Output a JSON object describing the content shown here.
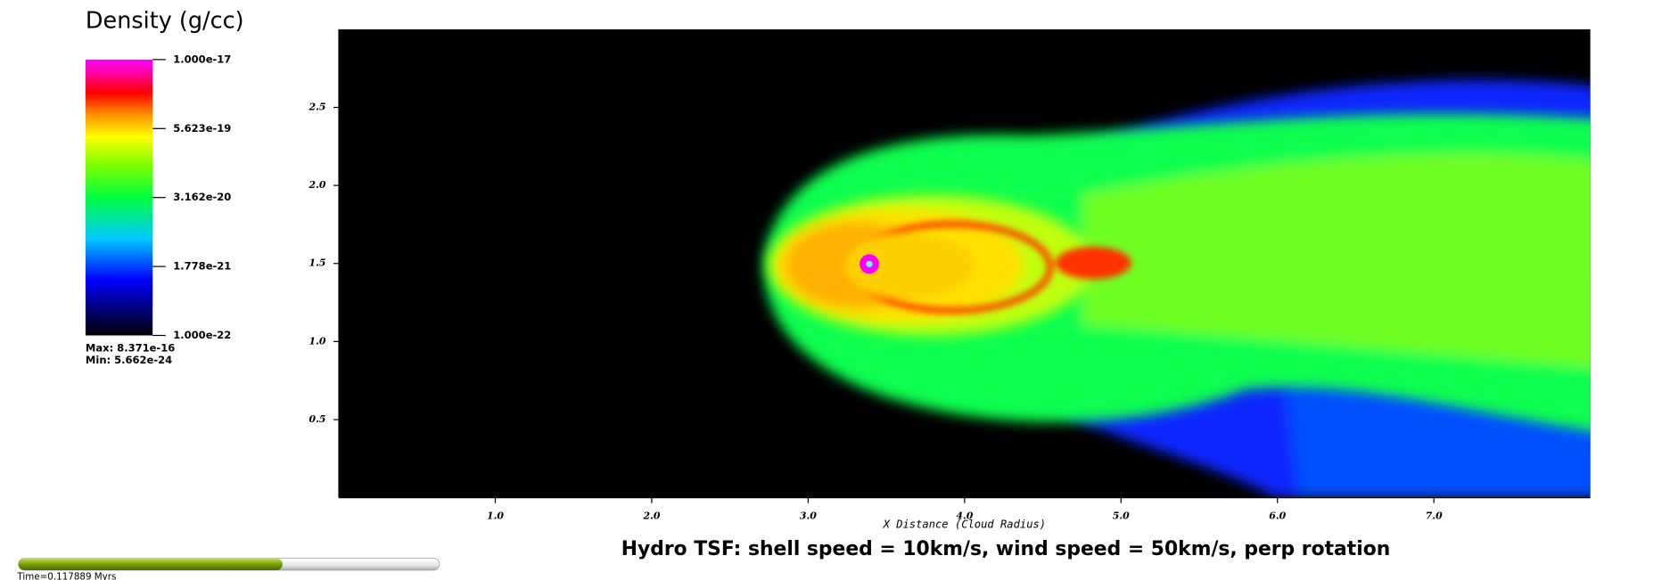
{
  "chart_data": {
    "type": "pseudocolor",
    "title": "Hydro TSF: shell speed = 10km/s, wind speed = 50km/s, perp rotation",
    "x_label": "X Distance (Cloud Radius)",
    "xlim": [
      0,
      8.0
    ],
    "ylim": [
      0,
      3.0
    ],
    "xticks": [
      {
        "value": 1,
        "label": "1.0"
      },
      {
        "value": 2,
        "label": "2.0"
      },
      {
        "value": 3,
        "label": "3.0"
      },
      {
        "value": 4,
        "label": "4.0"
      },
      {
        "value": 5,
        "label": "5.0"
      },
      {
        "value": 6,
        "label": "6.0"
      },
      {
        "value": 7,
        "label": "7.0"
      }
    ],
    "yticks": [
      {
        "value": 0.5,
        "label": "0.5"
      },
      {
        "value": 1,
        "label": "1.0"
      },
      {
        "value": 1.5,
        "label": "1.5"
      },
      {
        "value": 2,
        "label": "2.0"
      },
      {
        "value": 2.5,
        "label": "2.5"
      }
    ],
    "colorbar": {
      "title": "Density (g/cc)",
      "log": true,
      "clim": [
        1e-22,
        1e-17
      ],
      "ticks": [
        {
          "value": 1e-17,
          "label": "1.000e-17"
        },
        {
          "value": 5.623e-19,
          "label": "5.623e-19"
        },
        {
          "value": 3.162e-20,
          "label": "3.162e-20"
        },
        {
          "value": 1.778e-21,
          "label": "1.778e-21"
        },
        {
          "value": 1e-22,
          "label": "1.000e-22"
        }
      ],
      "max_label": "Max:  8.371e-16",
      "min_label": "Min:  5.662e-24"
    },
    "time_label": "Time=0.117889 Myrs"
  }
}
